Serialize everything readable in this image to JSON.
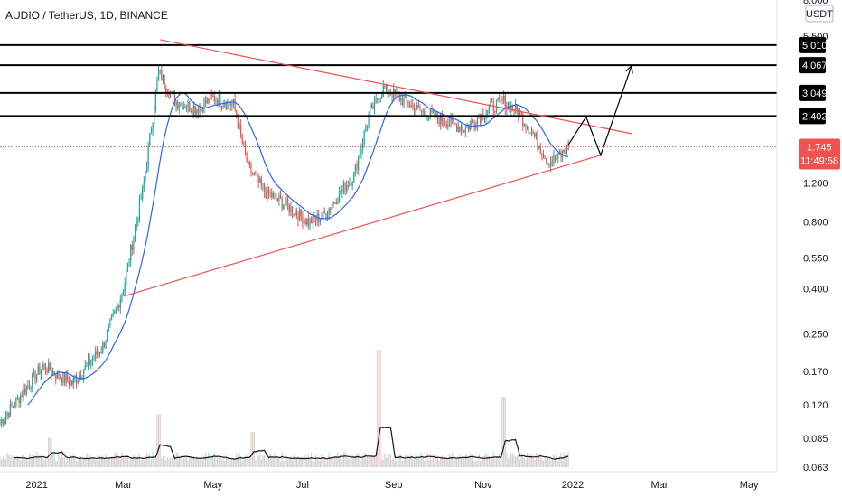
{
  "chart_data": {
    "type": "candlestick",
    "title": "AUDIO / TetherUS, 1D, BINANCE",
    "currency": "USDT",
    "y_scale": "log",
    "ylim": [
      0.06,
      8.0
    ],
    "y_ticks": [
      "8.000",
      "5.500",
      "1.200",
      "0.800",
      "0.550",
      "0.400",
      "0.250",
      "0.170",
      "0.120",
      "0.085",
      "0.063"
    ],
    "x_ticks": [
      "2021",
      "Mar",
      "May",
      "Jul",
      "Sep",
      "Nov",
      "2022",
      "Mar",
      "May"
    ],
    "x_range": [
      "2020-12-07",
      "2022-05-20"
    ],
    "price_levels": [
      "5.010",
      "4.067",
      "3.049",
      "2.402"
    ],
    "last_price": "1.745",
    "countdown": "11:49:58",
    "trendlines": [
      {
        "from": [
          "2021-03-26",
          5.3
        ],
        "to": [
          "2022-02-10",
          2.0
        ]
      },
      {
        "from": [
          "2021-03-01",
          0.37
        ],
        "to": [
          "2022-01-20",
          1.6
        ]
      }
    ],
    "projection": [
      [
        "2021-12-29",
        1.78
      ],
      [
        "2022-01-10",
        2.38
      ],
      [
        "2022-01-20",
        1.6
      ],
      [
        "2022-02-10",
        4.05
      ]
    ],
    "keypoints": [
      [
        "2020-12-07",
        0.1
      ],
      [
        "2021-01-05",
        0.18
      ],
      [
        "2021-01-25",
        0.15
      ],
      [
        "2021-02-15",
        0.22
      ],
      [
        "2021-03-01",
        0.4
      ],
      [
        "2021-03-15",
        1.2
      ],
      [
        "2021-03-25",
        3.8
      ],
      [
        "2021-04-05",
        2.8
      ],
      [
        "2021-04-20",
        2.6
      ],
      [
        "2021-05-01",
        2.9
      ],
      [
        "2021-05-15",
        2.7
      ],
      [
        "2021-05-25",
        1.4
      ],
      [
        "2021-06-05",
        1.1
      ],
      [
        "2021-06-20",
        0.95
      ],
      [
        "2021-07-05",
        0.8
      ],
      [
        "2021-07-15",
        0.85
      ],
      [
        "2021-07-25",
        1.05
      ],
      [
        "2021-08-05",
        1.3
      ],
      [
        "2021-08-15",
        2.4
      ],
      [
        "2021-08-25",
        3.2
      ],
      [
        "2021-09-05",
        2.9
      ],
      [
        "2021-09-20",
        2.5
      ],
      [
        "2021-10-05",
        2.3
      ],
      [
        "2021-10-20",
        2.1
      ],
      [
        "2021-11-05",
        2.6
      ],
      [
        "2021-11-15",
        2.8
      ],
      [
        "2021-11-25",
        2.5
      ],
      [
        "2021-12-05",
        2.0
      ],
      [
        "2021-12-15",
        1.5
      ],
      [
        "2021-12-22",
        1.55
      ],
      [
        "2021-12-29",
        1.745
      ]
    ],
    "volume_spikes": [
      [
        "2021-03-25",
        0.45
      ],
      [
        "2021-08-22",
        1.0
      ],
      [
        "2021-11-15",
        0.6
      ],
      [
        "2021-05-28",
        0.3
      ],
      [
        "2021-01-10",
        0.25
      ]
    ]
  }
}
